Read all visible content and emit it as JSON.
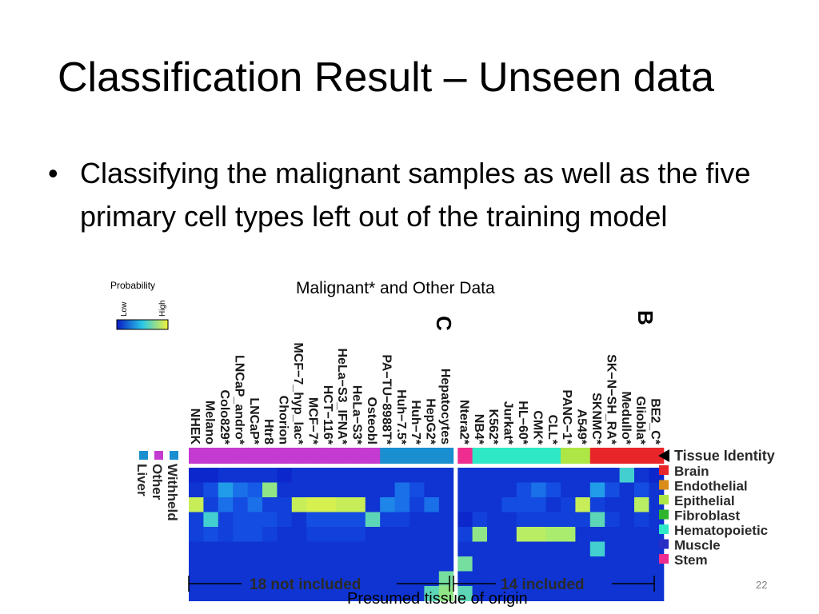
{
  "slide": {
    "title": "Classification Result – Unseen data",
    "bullet": "Classifying the malignant samples as well as the five primary cell types left out of the training model",
    "slide_number": "22",
    "caption": "Presumed tissue of origin"
  },
  "figure": {
    "heading": "Malignant* and Other Data",
    "scale": {
      "title": "Probability",
      "low": "Low",
      "high": "High"
    },
    "panel_labels": [
      "C",
      "B"
    ],
    "column_labels": [
      "NHEK",
      "Melano",
      "Colo829*",
      "LNCaP_andro*",
      "LNCaP*",
      "Htr8",
      "Chorion",
      "MCF−7_hyp_lac*",
      "MCF−7*",
      "HCT−116*",
      "HeLa−S3_IFNA*",
      "HeLa−S3*",
      "Osteobl",
      "PA−TU−8988T*",
      "Huh−7.5*",
      "Huh−7*",
      "HepG2*",
      "Hepatocytes",
      "Ntera2*",
      "NB4*",
      "K562*",
      "Jurkat*",
      "HL−60*",
      "CMK*",
      "CLL*",
      "PANC−1*",
      "A549*",
      "SKNMC*",
      "SK−N−SH_RA*",
      "Medullo*",
      "Gliobla*",
      "BE2_C*"
    ],
    "tissue_identity_label": "Tissue Identity",
    "legend_left": [
      "Withheld",
      "Other",
      "Liver"
    ],
    "legend_left_colors": [
      "#1a8fd0",
      "#c43bd1",
      "#1a8fd0"
    ],
    "tissues": [
      "Brain",
      "Endothelial",
      "Epithelial",
      "Fibroblast",
      "Hematopoietic",
      "Muscle",
      "Stem"
    ],
    "tissue_colors": [
      "#e8262a",
      "#d98c17",
      "#aee645",
      "#2fb52c",
      "#2fe8c6",
      "#2a2ec4",
      "#ef2c8f"
    ],
    "bracket_left": "18 not included",
    "bracket_right": "14 included",
    "identity_colors": [
      "#c43bd1",
      "#c43bd1",
      "#c43bd1",
      "#c43bd1",
      "#c43bd1",
      "#c43bd1",
      "#c43bd1",
      "#c43bd1",
      "#c43bd1",
      "#c43bd1",
      "#c43bd1",
      "#c43bd1",
      "#c43bd1",
      "#1a8fd0",
      "#1a8fd0",
      "#1a8fd0",
      "#1a8fd0",
      "#1a8fd0",
      "#ef2c8f",
      "#2fe8c6",
      "#2fe8c6",
      "#2fe8c6",
      "#2fe8c6",
      "#2fe8c6",
      "#2fe8c6",
      "#aee645",
      "#aee645",
      "#e8262a",
      "#e8262a",
      "#e8262a",
      "#e8262a",
      "#e8262a"
    ],
    "heatmap": [
      [
        0.05,
        0.05,
        0.1,
        0.1,
        0.1,
        0.1,
        0.05,
        0.1,
        0.1,
        0.1,
        0.1,
        0.1,
        0.1,
        0.1,
        0.1,
        0.1,
        0.1,
        0.1,
        0.1,
        0.1,
        0.1,
        0.1,
        0.1,
        0.1,
        0.1,
        0.1,
        0.1,
        0.1,
        0.1,
        0.55,
        0.1,
        0.05
      ],
      [
        0.1,
        0.2,
        0.4,
        0.3,
        0.25,
        0.7,
        0.1,
        0.1,
        0.1,
        0.1,
        0.1,
        0.1,
        0.1,
        0.1,
        0.3,
        0.2,
        0.1,
        0.1,
        0.1,
        0.1,
        0.1,
        0.1,
        0.2,
        0.3,
        0.2,
        0.1,
        0.1,
        0.4,
        0.2,
        0.1,
        0.2,
        0.1
      ],
      [
        0.85,
        0.15,
        0.3,
        0.2,
        0.3,
        0.15,
        0.15,
        0.85,
        0.9,
        0.9,
        0.85,
        0.85,
        0.1,
        0.35,
        0.3,
        0.15,
        0.3,
        0.1,
        0.1,
        0.1,
        0.1,
        0.2,
        0.2,
        0.2,
        0.1,
        0.15,
        0.85,
        0.15,
        0.1,
        0.1,
        0.8,
        0.1
      ],
      [
        0.15,
        0.55,
        0.15,
        0.2,
        0.2,
        0.2,
        0.15,
        0.1,
        0.2,
        0.2,
        0.2,
        0.2,
        0.6,
        0.15,
        0.15,
        0.1,
        0.1,
        0.1,
        0.05,
        0.15,
        0.1,
        0.1,
        0.15,
        0.15,
        0.15,
        0.15,
        0.15,
        0.6,
        0.15,
        0.1,
        0.15,
        0.1
      ],
      [
        0.15,
        0.2,
        0.15,
        0.2,
        0.2,
        0.15,
        0.1,
        0.1,
        0.15,
        0.15,
        0.15,
        0.15,
        0.1,
        0.1,
        0.1,
        0.1,
        0.1,
        0.1,
        0.15,
        0.7,
        0.1,
        0.1,
        0.8,
        0.8,
        0.75,
        0.75,
        0.1,
        0.1,
        0.1,
        0.1,
        0.1,
        0.1
      ],
      [
        0.1,
        0.1,
        0.1,
        0.1,
        0.1,
        0.1,
        0.1,
        0.1,
        0.1,
        0.1,
        0.1,
        0.1,
        0.1,
        0.1,
        0.1,
        0.1,
        0.1,
        0.1,
        0.1,
        0.1,
        0.1,
        0.1,
        0.1,
        0.1,
        0.1,
        0.1,
        0.1,
        0.55,
        0.1,
        0.1,
        0.1,
        0.1
      ],
      [
        0.1,
        0.1,
        0.1,
        0.1,
        0.1,
        0.1,
        0.1,
        0.1,
        0.1,
        0.1,
        0.1,
        0.1,
        0.1,
        0.1,
        0.1,
        0.1,
        0.1,
        0.1,
        0.65,
        0.1,
        0.1,
        0.1,
        0.1,
        0.1,
        0.1,
        0.1,
        0.1,
        0.1,
        0.1,
        0.1,
        0.1,
        0.1
      ],
      [
        0.1,
        0.1,
        0.1,
        0.1,
        0.1,
        0.1,
        0.1,
        0.1,
        0.1,
        0.1,
        0.1,
        0.1,
        0.1,
        0.1,
        0.1,
        0.1,
        0.1,
        0.65,
        0.1,
        0.1,
        0.1,
        0.1,
        0.1,
        0.1,
        0.1,
        0.1,
        0.1,
        0.1,
        0.1,
        0.1,
        0.1,
        0.1
      ],
      [
        0.1,
        0.1,
        0.1,
        0.1,
        0.1,
        0.1,
        0.1,
        0.1,
        0.1,
        0.1,
        0.1,
        0.1,
        0.1,
        0.1,
        0.1,
        0.1,
        0.6,
        0.7,
        0.6,
        0.1,
        0.1,
        0.1,
        0.1,
        0.1,
        0.1,
        0.1,
        0.1,
        0.1,
        0.1,
        0.1,
        0.1,
        0.1
      ]
    ]
  }
}
